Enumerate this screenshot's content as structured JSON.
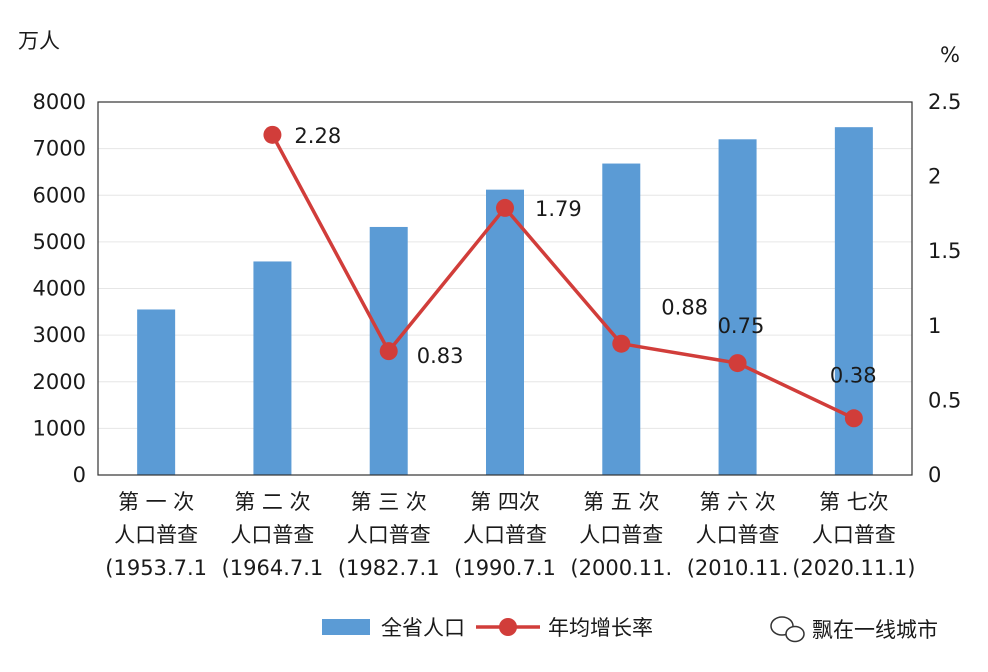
{
  "chart_data": {
    "type": "bar",
    "categories": [
      [
        "第 一 次",
        "人口普查",
        "(1953.7.1"
      ],
      [
        "第 二 次",
        "人口普查",
        "(1964.7.1"
      ],
      [
        "第 三 次",
        "人口普查",
        "(1982.7.1"
      ],
      [
        "第 四次",
        "人口普查",
        "(1990.7.1"
      ],
      [
        "第 五 次",
        "人口普查",
        "(2000.11."
      ],
      [
        "第 六 次",
        "人口普查",
        "(2010.11."
      ],
      [
        "第 七次",
        "人口普查",
        "(2020.11.1)"
      ]
    ],
    "series": [
      {
        "name": "全省人口",
        "type": "bar",
        "axis": "left",
        "color": "#5b9bd5",
        "values": [
          3550,
          4580,
          5320,
          6120,
          6680,
          7200,
          7460
        ]
      },
      {
        "name": "年均增长率",
        "type": "line",
        "axis": "right",
        "color": "#d13d3a",
        "values": [
          null,
          2.28,
          0.83,
          1.79,
          0.88,
          0.75,
          0.38
        ],
        "labels": [
          "",
          "2.28",
          "0.83",
          "1.79",
          "0.88",
          "0.75",
          "0.38"
        ]
      }
    ],
    "y_left": {
      "unit": "万人",
      "min": 0,
      "max": 8000,
      "ticks": [
        "0",
        "1000",
        "2000",
        "3000",
        "4000",
        "5000",
        "6000",
        "7000",
        "8000"
      ]
    },
    "y_right": {
      "unit": "%",
      "min": 0,
      "max": 2.5,
      "ticks": [
        "0",
        "0.5",
        "1",
        "1.5",
        "2",
        "2.5"
      ]
    },
    "grid": "horizontal",
    "legend_position": "bottom"
  },
  "watermark": {
    "text": "飘在一线城市",
    "icon": "wechat-icon"
  }
}
